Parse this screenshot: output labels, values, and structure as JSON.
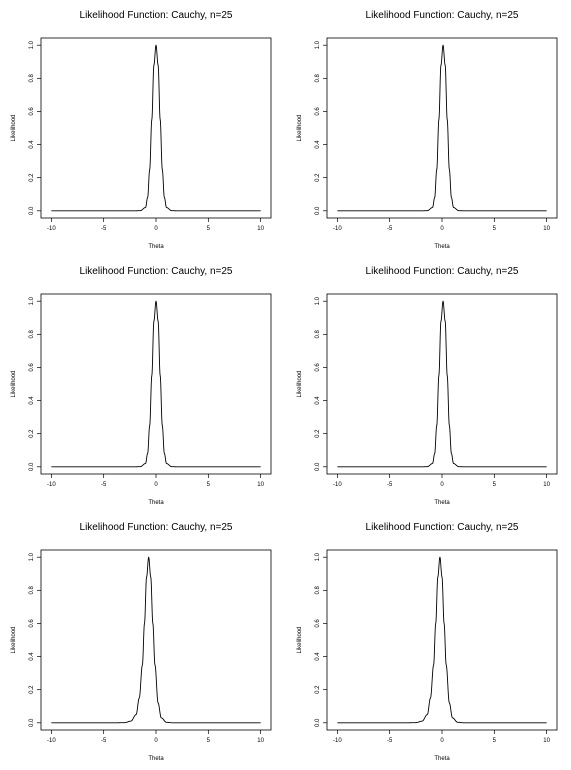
{
  "chart_data": [
    {
      "type": "line",
      "title": "Likelihood Function: Cauchy, n=25",
      "xlabel": "Theta",
      "ylabel": "Likelihood",
      "xlim": [
        -10,
        10
      ],
      "ylim": [
        0,
        1
      ],
      "xticks": [
        "-10",
        "-5",
        "0",
        "5",
        "10"
      ],
      "yticks": [
        "0.0",
        "0.2",
        "0.4",
        "0.6",
        "0.8",
        "1.0"
      ],
      "grid": false,
      "series": [
        {
          "peak_x": 0.0,
          "x": [
            -10,
            -3,
            -2,
            -1.5,
            -1,
            -0.8,
            -0.6,
            -0.4,
            -0.2,
            0,
            0.2,
            0.4,
            0.6,
            0.8,
            1,
            1.5,
            2,
            3,
            10
          ],
          "y": [
            0,
            0,
            0,
            0.001,
            0.02,
            0.08,
            0.25,
            0.55,
            0.88,
            1.0,
            0.88,
            0.55,
            0.25,
            0.08,
            0.02,
            0.001,
            0,
            0,
            0
          ]
        }
      ]
    },
    {
      "type": "line",
      "title": "Likelihood Function: Cauchy, n=25",
      "xlabel": "Theta",
      "ylabel": "Likelihood",
      "xlim": [
        -10,
        10
      ],
      "ylim": [
        0,
        1
      ],
      "xticks": [
        "-10",
        "-5",
        "0",
        "5",
        "10"
      ],
      "yticks": [
        "0.0",
        "0.2",
        "0.4",
        "0.6",
        "0.8",
        "1.0"
      ],
      "grid": false,
      "series": [
        {
          "peak_x": 0.1,
          "x": [
            -10,
            -3,
            -1.9,
            -1.4,
            -0.9,
            -0.7,
            -0.5,
            -0.3,
            -0.1,
            0.1,
            0.3,
            0.5,
            0.7,
            0.9,
            1.1,
            1.6,
            2.1,
            3.1,
            10
          ],
          "y": [
            0,
            0,
            0,
            0.001,
            0.02,
            0.08,
            0.25,
            0.55,
            0.88,
            1.0,
            0.88,
            0.55,
            0.25,
            0.08,
            0.02,
            0.001,
            0,
            0,
            0
          ]
        }
      ]
    },
    {
      "type": "line",
      "title": "Likelihood Function: Cauchy, n=25",
      "xlabel": "Theta",
      "ylabel": "Likelihood",
      "xlim": [
        -10,
        10
      ],
      "ylim": [
        0,
        1
      ],
      "xticks": [
        "-10",
        "-5",
        "0",
        "5",
        "10"
      ],
      "yticks": [
        "0.0",
        "0.2",
        "0.4",
        "0.6",
        "0.8",
        "1.0"
      ],
      "grid": false,
      "series": [
        {
          "peak_x": 0.0,
          "x": [
            -10,
            -3,
            -2,
            -1.5,
            -1,
            -0.8,
            -0.6,
            -0.4,
            -0.2,
            0,
            0.2,
            0.4,
            0.6,
            0.8,
            1,
            1.5,
            2,
            3,
            10
          ],
          "y": [
            0,
            0,
            0,
            0.001,
            0.02,
            0.08,
            0.25,
            0.55,
            0.88,
            1.0,
            0.88,
            0.55,
            0.25,
            0.08,
            0.02,
            0.001,
            0,
            0,
            0
          ]
        }
      ]
    },
    {
      "type": "line",
      "title": "Likelihood Function: Cauchy, n=25",
      "xlabel": "Theta",
      "ylabel": "Likelihood",
      "xlim": [
        -10,
        10
      ],
      "ylim": [
        0,
        1
      ],
      "xticks": [
        "-10",
        "-5",
        "0",
        "5",
        "10"
      ],
      "yticks": [
        "0.0",
        "0.2",
        "0.4",
        "0.6",
        "0.8",
        "1.0"
      ],
      "grid": false,
      "series": [
        {
          "peak_x": 0.1,
          "x": [
            -10,
            -3,
            -1.9,
            -1.4,
            -0.9,
            -0.7,
            -0.5,
            -0.3,
            -0.1,
            0.1,
            0.3,
            0.5,
            0.7,
            0.9,
            1.1,
            1.6,
            2.1,
            3.1,
            10
          ],
          "y": [
            0,
            0,
            0,
            0.001,
            0.02,
            0.08,
            0.25,
            0.55,
            0.88,
            1.0,
            0.88,
            0.55,
            0.25,
            0.08,
            0.02,
            0.001,
            0,
            0,
            0
          ]
        }
      ]
    },
    {
      "type": "line",
      "title": "Likelihood Function: Cauchy, n=25",
      "xlabel": "Theta",
      "ylabel": "Likelihood",
      "xlim": [
        -10,
        10
      ],
      "ylim": [
        0,
        1
      ],
      "xticks": [
        "-10",
        "-5",
        "0",
        "5",
        "10"
      ],
      "yticks": [
        "0.0",
        "0.2",
        "0.4",
        "0.6",
        "0.8",
        "1.0"
      ],
      "grid": false,
      "series": [
        {
          "peak_x": -0.7,
          "x": [
            -10,
            -3.9,
            -3,
            -2.4,
            -1.9,
            -1.6,
            -1.3,
            -1.1,
            -0.9,
            -0.7,
            -0.5,
            -0.3,
            -0.1,
            0.2,
            0.5,
            1,
            1.6,
            2.5,
            10
          ],
          "y": [
            0,
            0,
            0.001,
            0.01,
            0.05,
            0.15,
            0.35,
            0.6,
            0.88,
            1.0,
            0.88,
            0.6,
            0.35,
            0.12,
            0.03,
            0.003,
            0,
            0,
            0
          ]
        }
      ]
    },
    {
      "type": "line",
      "title": "Likelihood Function: Cauchy, n=25",
      "xlabel": "Theta",
      "ylabel": "Likelihood",
      "xlim": [
        -10,
        10
      ],
      "ylim": [
        0,
        1
      ],
      "xticks": [
        "-10",
        "-5",
        "0",
        "5",
        "10"
      ],
      "yticks": [
        "0.0",
        "0.2",
        "0.4",
        "0.6",
        "0.8",
        "1.0"
      ],
      "grid": false,
      "series": [
        {
          "peak_x": -0.2,
          "x": [
            -10,
            -3.4,
            -2.5,
            -1.9,
            -1.4,
            -1.1,
            -0.8,
            -0.6,
            -0.4,
            -0.2,
            0,
            0.2,
            0.4,
            0.7,
            1,
            1.5,
            2.1,
            3,
            10
          ],
          "y": [
            0,
            0,
            0.001,
            0.01,
            0.05,
            0.15,
            0.35,
            0.6,
            0.88,
            1.0,
            0.88,
            0.6,
            0.35,
            0.12,
            0.03,
            0.003,
            0,
            0,
            0
          ]
        }
      ]
    }
  ]
}
